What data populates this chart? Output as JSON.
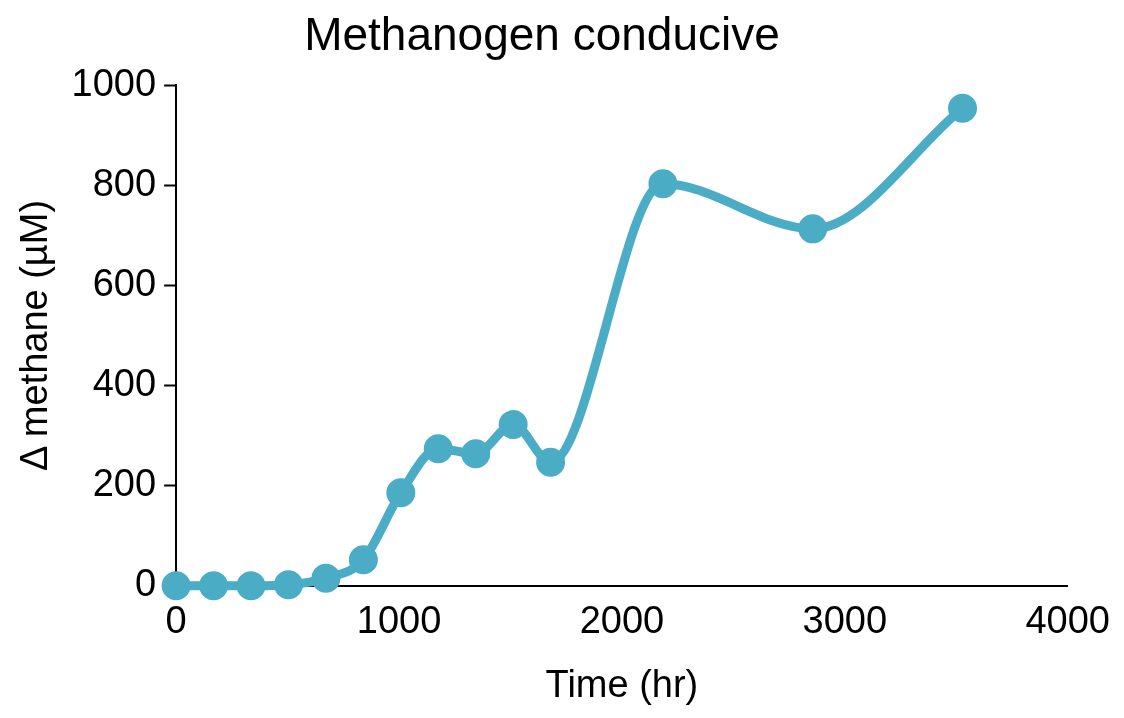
{
  "chart_data": {
    "type": "line",
    "title": "Methanogen conducive",
    "xlabel": "Time (hr)",
    "ylabel": "Δ methane (µM)",
    "x": [
      0,
      168,
      336,
      504,
      672,
      840,
      1008,
      1176,
      1344,
      1512,
      1680,
      2184,
      2856,
      3528
    ],
    "series": [
      {
        "color": "#4bacc6",
        "values": [
          0,
          0,
          0,
          2,
          15,
          52,
          186,
          274,
          264,
          322,
          247,
          803,
          713,
          954
        ]
      }
    ],
    "xlim": [
      0,
      4000
    ],
    "xticks": [
      0,
      1000,
      2000,
      3000,
      4000
    ],
    "ylim": [
      0,
      1000
    ],
    "yticks": [
      0,
      200,
      400,
      600,
      800,
      1000
    ],
    "grid": false,
    "legend": false,
    "marker": "circle",
    "line_style": "solid"
  }
}
